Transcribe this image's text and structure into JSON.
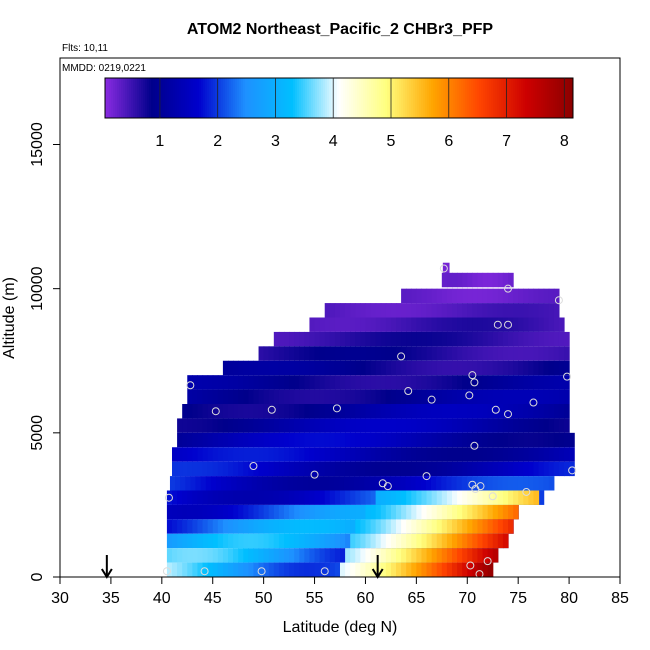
{
  "chart_data": {
    "type": "heatmap",
    "title": "ATOM2 Northeast_Pacific_2 CHBr3_PFP",
    "annotations": [
      "Flts: 10,11",
      "MMDD: 0219,0221"
    ],
    "xlabel": "Latitude (deg N)",
    "ylabel": "Altitude (m)",
    "xlim": [
      30,
      85
    ],
    "ylim": [
      0,
      18000
    ],
    "xticks": [
      30,
      35,
      40,
      45,
      50,
      55,
      60,
      65,
      70,
      75,
      80,
      85
    ],
    "yticks": [
      0,
      5000,
      10000,
      15000
    ],
    "grid": false,
    "colorbar": {
      "ticks": [
        1,
        2,
        3,
        4,
        5,
        6,
        7,
        8
      ],
      "range": [
        0.05,
        8.15
      ],
      "colors": [
        "#8a2be2",
        "#00008b",
        "#0000cd",
        "#1e90ff",
        "#00bfff",
        "#ffffff",
        "#ffff80",
        "#ffa500",
        "#ff4500",
        "#cd0000",
        "#8b0000"
      ]
    },
    "layers": [
      {
        "alt": 10700,
        "lat_min": 67.6,
        "lat_max": 68.2,
        "value": 0.2
      },
      {
        "alt": 10050,
        "lat_min": 67.5,
        "lat_max": 74.5,
        "value": 0.25
      },
      {
        "alt": 9500,
        "lat_min": 63.5,
        "lat_max": 79.0,
        "value": 0.3
      },
      {
        "alt": 9000,
        "lat_min": 56.0,
        "lat_max": 79.0,
        "value": 0.45
      },
      {
        "alt": 8500,
        "lat_min": 54.5,
        "lat_max": 79.5,
        "value": 0.6
      },
      {
        "alt": 8000,
        "lat_min": 51.0,
        "lat_max": 80.0,
        "value": 0.7
      },
      {
        "alt": 7500,
        "lat_min": 49.5,
        "lat_max": 80.0,
        "value": 0.8
      },
      {
        "alt": 7000,
        "lat_min": 46.0,
        "lat_max": 80.0,
        "value": 1.0
      },
      {
        "alt": 6500,
        "lat_min": 42.5,
        "lat_max": 80.0,
        "value": 1.1
      },
      {
        "alt": 6000,
        "lat_min": 42.5,
        "lat_max": 80.0,
        "value": 1.2
      },
      {
        "alt": 5500,
        "lat_min": 42.0,
        "lat_max": 80.0,
        "value": 1.3
      },
      {
        "alt": 5000,
        "lat_min": 41.5,
        "lat_max": 80.0,
        "value": 1.4
      },
      {
        "alt": 4500,
        "lat_min": 41.5,
        "lat_max": 80.5,
        "value": 1.5
      },
      {
        "alt": 4000,
        "lat_min": 41.0,
        "lat_max": 80.5,
        "value": 1.6
      },
      {
        "alt": 3500,
        "lat_min": 41.0,
        "lat_max": 80.5,
        "value": 1.7
      },
      {
        "alt": 3000,
        "lat_min": 40.8,
        "lat_max": 78.5,
        "value": 1.9
      },
      {
        "alt": 2500,
        "lat_min": 40.5,
        "lat_max": 77.5,
        "value": 2.3
      },
      {
        "alt": 2000,
        "lat_min": 40.5,
        "lat_max": 75.0,
        "value": 2.6
      },
      {
        "alt": 1500,
        "lat_min": 40.5,
        "lat_max": 74.5,
        "value": 2.8
      },
      {
        "alt": 1000,
        "lat_min": 40.5,
        "lat_max": 74.0,
        "value": 3.0
      },
      {
        "alt": 500,
        "lat_min": 40.5,
        "lat_max": 73.0,
        "value": 3.2
      },
      {
        "alt": 0,
        "lat_min": 40.5,
        "lat_max": 72.5,
        "value": 3.5
      }
    ],
    "hotspots": [
      {
        "alt": 2500,
        "lat_min": 61.0,
        "lat_max": 77.0,
        "value_start": 3.0,
        "value_end": 5.5
      },
      {
        "alt": 2000,
        "lat_min": 60.0,
        "lat_max": 75.0,
        "value_start": 3.2,
        "value_end": 6.2
      },
      {
        "alt": 1500,
        "lat_min": 59.0,
        "lat_max": 74.5,
        "value_start": 3.3,
        "value_end": 6.8
      },
      {
        "alt": 1000,
        "lat_min": 58.5,
        "lat_max": 74.0,
        "value_start": 3.5,
        "value_end": 7.2
      },
      {
        "alt": 500,
        "lat_min": 58.0,
        "lat_max": 73.0,
        "value_start": 3.8,
        "value_end": 7.6
      },
      {
        "alt": 0,
        "lat_min": 57.5,
        "lat_max": 72.5,
        "value_start": 4.0,
        "value_end": 8.0
      }
    ],
    "points": [
      {
        "lat": 67.7,
        "alt": 10700
      },
      {
        "lat": 74.0,
        "alt": 10000
      },
      {
        "lat": 79.0,
        "alt": 9600
      },
      {
        "lat": 73.0,
        "alt": 8750
      },
      {
        "lat": 74.0,
        "alt": 8750
      },
      {
        "lat": 63.5,
        "alt": 7650
      },
      {
        "lat": 70.5,
        "alt": 7000
      },
      {
        "lat": 70.7,
        "alt": 6750
      },
      {
        "lat": 79.8,
        "alt": 6950
      },
      {
        "lat": 42.8,
        "alt": 6650
      },
      {
        "lat": 64.2,
        "alt": 6450
      },
      {
        "lat": 70.2,
        "alt": 6300
      },
      {
        "lat": 66.5,
        "alt": 6150
      },
      {
        "lat": 76.5,
        "alt": 6050
      },
      {
        "lat": 45.3,
        "alt": 5750
      },
      {
        "lat": 50.8,
        "alt": 5800
      },
      {
        "lat": 57.2,
        "alt": 5850
      },
      {
        "lat": 72.8,
        "alt": 5800
      },
      {
        "lat": 74.0,
        "alt": 5650
      },
      {
        "lat": 70.7,
        "alt": 4550
      },
      {
        "lat": 49.0,
        "alt": 3850
      },
      {
        "lat": 55.0,
        "alt": 3550
      },
      {
        "lat": 66.0,
        "alt": 3500
      },
      {
        "lat": 80.3,
        "alt": 3700
      },
      {
        "lat": 61.7,
        "alt": 3250
      },
      {
        "lat": 62.2,
        "alt": 3150
      },
      {
        "lat": 70.5,
        "alt": 3200
      },
      {
        "lat": 71.3,
        "alt": 3150
      },
      {
        "lat": 70.8,
        "alt": 3050
      },
      {
        "lat": 75.8,
        "alt": 2950
      },
      {
        "lat": 72.5,
        "alt": 2800
      },
      {
        "lat": 40.7,
        "alt": 2750
      },
      {
        "lat": 40.5,
        "alt": 200
      },
      {
        "lat": 44.2,
        "alt": 200
      },
      {
        "lat": 49.8,
        "alt": 200
      },
      {
        "lat": 56.0,
        "alt": 200
      },
      {
        "lat": 72.0,
        "alt": 550
      },
      {
        "lat": 70.3,
        "alt": 400
      },
      {
        "lat": 71.2,
        "alt": 100
      }
    ],
    "arrows": [
      {
        "lat": 34.6
      },
      {
        "lat": 61.2
      }
    ]
  }
}
